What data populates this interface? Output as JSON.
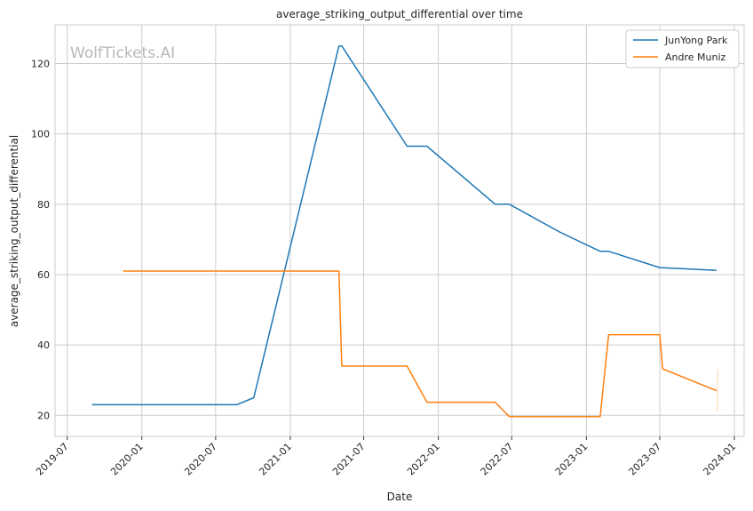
{
  "chart_data": {
    "type": "line",
    "title": "average_striking_output_differential over time",
    "xlabel": "Date",
    "ylabel": "average_striking_output_differential",
    "watermark": "WolfTickets.AI",
    "x_ticks": [
      "2019-07",
      "2020-01",
      "2020-07",
      "2021-01",
      "2021-07",
      "2022-01",
      "2022-07",
      "2023-01",
      "2023-07",
      "2024-01"
    ],
    "y_ticks": [
      20,
      40,
      60,
      80,
      100,
      120
    ],
    "xlim": [
      "2019-06-01",
      "2024-01-25"
    ],
    "ylim": [
      14,
      131
    ],
    "grid": true,
    "legend_position": "top-right",
    "series": [
      {
        "name": "JunYong Park",
        "color": "#1f77b4",
        "points": [
          [
            "2019-08-31",
            23.0
          ],
          [
            "2020-08-22",
            23.0
          ],
          [
            "2020-10-03",
            25.0
          ],
          [
            "2021-05-01",
            125.0
          ],
          [
            "2021-05-08",
            125.0
          ],
          [
            "2021-10-16",
            96.5
          ],
          [
            "2021-12-04",
            96.5
          ],
          [
            "2022-05-21",
            80.0
          ],
          [
            "2022-06-25",
            80.0
          ],
          [
            "2022-10-29",
            72.0
          ],
          [
            "2023-02-04",
            66.6
          ],
          [
            "2023-02-25",
            66.6
          ],
          [
            "2023-07-01",
            62.0
          ],
          [
            "2023-11-18",
            61.2
          ]
        ]
      },
      {
        "name": "Andre Muniz",
        "color": "#ff7f0e",
        "points": [
          [
            "2019-11-16",
            61.0
          ],
          [
            "2021-05-01",
            61.0
          ],
          [
            "2021-05-08",
            34.0
          ],
          [
            "2021-10-16",
            34.0
          ],
          [
            "2021-12-04",
            23.7
          ],
          [
            "2022-05-21",
            23.7
          ],
          [
            "2022-06-25",
            19.6
          ],
          [
            "2023-02-04",
            19.6
          ],
          [
            "2023-02-25",
            42.9
          ],
          [
            "2023-07-01",
            42.9
          ],
          [
            "2023-07-08",
            33.2
          ],
          [
            "2023-11-18",
            27.0
          ]
        ]
      }
    ]
  }
}
